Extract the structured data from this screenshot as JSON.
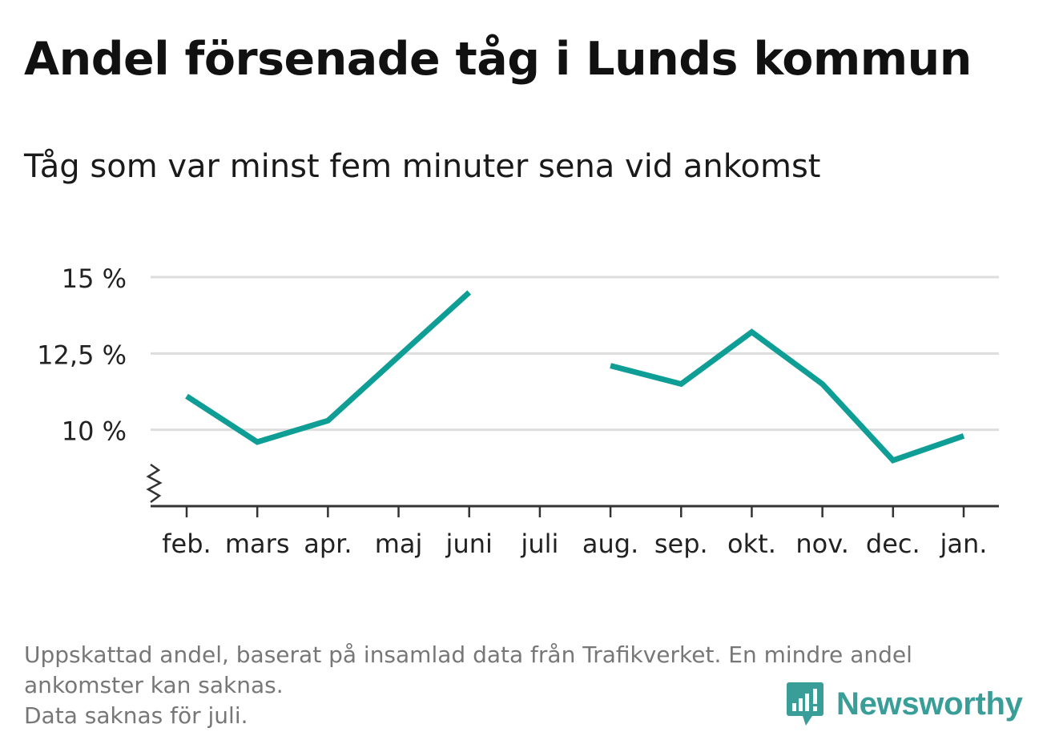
{
  "header": {
    "title": "Andel försenade tåg i Lunds kommun",
    "subtitle": "Tåg som var minst fem minuter sena vid ankomst"
  },
  "footer": {
    "note_line1": "Uppskattad andel, baserat på insamlad data från Trafikverket. En mindre andel",
    "note_line2": "ankomster kan saknas.",
    "note_line3": "Data saknas för juli.",
    "brand": "Newsworthy",
    "brand_icon": "bar-chart-speech-bubble-icon"
  },
  "colors": {
    "line": "#0f9e96",
    "grid": "#dddddd",
    "axis": "#333333",
    "brand": "#3a9e98"
  },
  "chart_data": {
    "type": "line",
    "categories": [
      "feb.",
      "mars",
      "apr.",
      "maj",
      "juni",
      "juli",
      "aug.",
      "sep.",
      "okt.",
      "nov.",
      "dec.",
      "jan."
    ],
    "series": [
      {
        "values": [
          11.1,
          9.6,
          10.3,
          12.4,
          14.5,
          null,
          12.1,
          11.5,
          13.2,
          11.5,
          9.0,
          9.8
        ]
      }
    ],
    "ylim": [
      7.5,
      15
    ],
    "yticks": [
      10,
      12.5,
      15
    ],
    "ytick_labels": [
      "10 %",
      "12,5 %",
      "15 %"
    ],
    "axis_break": true,
    "grid": true,
    "legend": "none"
  }
}
